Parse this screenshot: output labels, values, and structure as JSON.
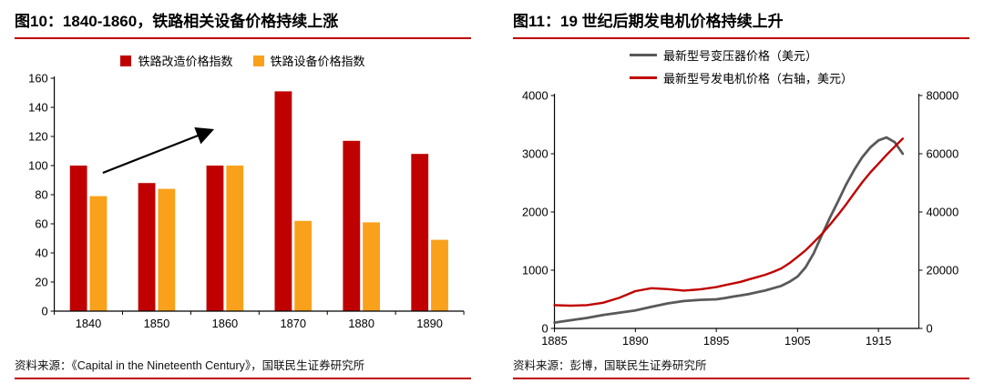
{
  "page_background": "#ffffff",
  "accent_red": "#c00000",
  "left_panel": {
    "figure_label": "图10：",
    "title": "1840-1860，铁路相关设备价格持续上涨",
    "source_label": "资料来源：",
    "source_text": "《Capital in the Nineteenth Century》，国联民生证券研究所"
  },
  "right_panel": {
    "figure_label": "图11：",
    "title": "19 世纪后期发电机价格持续上升",
    "source_label": "资料来源：",
    "source_text": "彭博，国联民生证券研究所"
  },
  "chart_data": [
    {
      "type": "bar",
      "title": "图10：1840-1860，铁路相关设备价格持续上涨",
      "categories": [
        "1840",
        "1850",
        "1860",
        "1870",
        "1880",
        "1890"
      ],
      "series": [
        {
          "name": "铁路改造价格指数",
          "color": "#c00000",
          "values": [
            100,
            88,
            100,
            151,
            117,
            108
          ]
        },
        {
          "name": "铁路设备价格指数",
          "color": "#f9a11b",
          "values": [
            79,
            84,
            100,
            62,
            61,
            49
          ]
        }
      ],
      "ylim": [
        0,
        160
      ],
      "ytick_step": 20,
      "grid": false,
      "legend_position": "top",
      "annotation": {
        "type": "arrow-up-right",
        "from_category": "1840",
        "to_category": "1860"
      }
    },
    {
      "type": "line",
      "title": "图11：19 世纪后期发电机价格持续上升",
      "x_tick_years": [
        1885,
        1890,
        1895,
        1905,
        1915
      ],
      "x_scale": {
        "years": [
          1885,
          1890,
          1895,
          1905,
          1915,
          1920
        ],
        "positions": [
          0,
          0.222,
          0.444,
          0.667,
          0.889,
          1
        ]
      },
      "left_ylim": [
        0,
        4000
      ],
      "left_yticks": [
        0,
        1000,
        2000,
        3000,
        4000
      ],
      "right_ylim": [
        0,
        80000
      ],
      "right_yticks": [
        0,
        20000,
        40000,
        60000,
        80000
      ],
      "grid": false,
      "legend_position": "top",
      "series": [
        {
          "name": "最新型号变压器价格（美元）",
          "axis": "left",
          "color": "#595959",
          "x": [
            1885,
            1886,
            1887,
            1888,
            1889,
            1890,
            1891,
            1892,
            1893,
            1894,
            1895,
            1896,
            1897,
            1898,
            1899,
            1900,
            1901,
            1902,
            1903,
            1904,
            1905,
            1906,
            1907,
            1908,
            1909,
            1910,
            1911,
            1912,
            1913,
            1914,
            1915,
            1916,
            1917,
            1918
          ],
          "values": [
            100,
            140,
            180,
            230,
            270,
            310,
            370,
            430,
            470,
            490,
            500,
            520,
            545,
            565,
            590,
            620,
            650,
            690,
            730,
            800,
            890,
            1050,
            1290,
            1600,
            1900,
            2180,
            2470,
            2720,
            2940,
            3110,
            3230,
            3280,
            3200,
            3000
          ]
        },
        {
          "name": "最新型号发电机价格（右轴，美元）",
          "axis": "right",
          "color": "#c00000",
          "x": [
            1885,
            1886,
            1887,
            1888,
            1889,
            1890,
            1891,
            1892,
            1893,
            1894,
            1895,
            1896,
            1897,
            1898,
            1899,
            1900,
            1901,
            1902,
            1903,
            1904,
            1905,
            1906,
            1907,
            1908,
            1909,
            1910,
            1911,
            1912,
            1913,
            1914,
            1915,
            1916,
            1917,
            1918
          ],
          "values": [
            8000,
            7800,
            8000,
            8800,
            10500,
            12800,
            13800,
            13500,
            13000,
            13400,
            14200,
            14800,
            15400,
            16000,
            16800,
            17600,
            18400,
            19400,
            20600,
            22400,
            24600,
            26800,
            29600,
            32400,
            35600,
            39000,
            42600,
            46400,
            50200,
            53600,
            56600,
            59600,
            62400,
            65200
          ]
        }
      ]
    }
  ]
}
